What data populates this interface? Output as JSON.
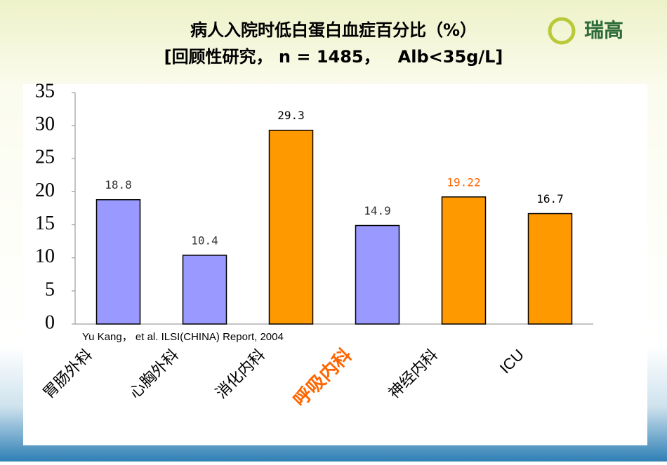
{
  "chart_data": {
    "type": "bar",
    "title": "病人入院时低白蛋白血症百分比（%）",
    "subtitle": "[回顾性研究， n = 1485，   Alb<35g/L]",
    "logo": "瑞高",
    "note": "Yu Kang， et al. ILSI(CHINA) Report, 2004",
    "categories": [
      "胃肠外科",
      "心胸外科",
      "消化内科",
      "呼吸内科",
      "神经内科",
      "ICU"
    ],
    "values": [
      18.8,
      10.4,
      29.3,
      14.9,
      19.22,
      16.7
    ],
    "colors": [
      "#9999ff",
      "#9999ff",
      "#ff9900",
      "#9999ff",
      "#ff9900",
      "#ff9900"
    ],
    "category_label_colors": [
      "#000000",
      "#000000",
      "#000000",
      "#ff6600",
      "#000000",
      "#000000"
    ],
    "value_label_colors": [
      "#333333",
      "#333333",
      "#000000",
      "#333333",
      "#ff6600",
      "#000000"
    ],
    "ylim": [
      0,
      35
    ],
    "yticks": [
      0,
      5,
      10,
      15,
      20,
      25,
      30,
      35
    ],
    "grid": false
  }
}
